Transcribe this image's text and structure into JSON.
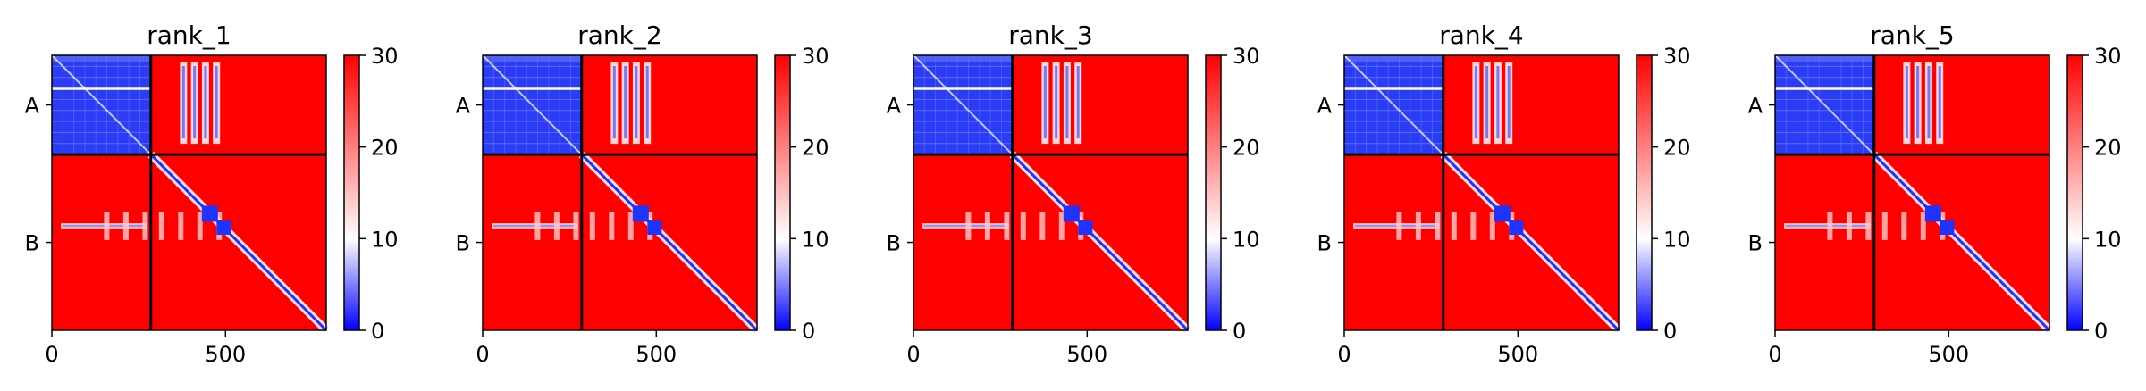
{
  "chart_data": [
    {
      "type": "heatmap",
      "title": "rank_1",
      "chains": [
        "A",
        "B"
      ],
      "chain_boundary": 285,
      "length": 790,
      "xticks": [
        0,
        500
      ],
      "colorbar": {
        "min": 0,
        "max": 30,
        "ticks": [
          0,
          10,
          20,
          30
        ],
        "colors": [
          "#0000ff",
          "#ffffff",
          "#ff0000"
        ]
      }
    },
    {
      "type": "heatmap",
      "title": "rank_2",
      "chains": [
        "A",
        "B"
      ],
      "chain_boundary": 285,
      "length": 790,
      "xticks": [
        0,
        500
      ],
      "colorbar": {
        "min": 0,
        "max": 30,
        "ticks": [
          0,
          10,
          20,
          30
        ],
        "colors": [
          "#0000ff",
          "#ffffff",
          "#ff0000"
        ]
      }
    },
    {
      "type": "heatmap",
      "title": "rank_3",
      "chains": [
        "A",
        "B"
      ],
      "chain_boundary": 285,
      "length": 790,
      "xticks": [
        0,
        500
      ],
      "colorbar": {
        "min": 0,
        "max": 30,
        "ticks": [
          0,
          10,
          20,
          30
        ],
        "colors": [
          "#0000ff",
          "#ffffff",
          "#ff0000"
        ]
      }
    },
    {
      "type": "heatmap",
      "title": "rank_4",
      "chains": [
        "A",
        "B"
      ],
      "chain_boundary": 285,
      "length": 790,
      "xticks": [
        0,
        500
      ],
      "colorbar": {
        "min": 0,
        "max": 30,
        "ticks": [
          0,
          10,
          20,
          30
        ],
        "colors": [
          "#0000ff",
          "#ffffff",
          "#ff0000"
        ]
      }
    },
    {
      "type": "heatmap",
      "title": "rank_5",
      "chains": [
        "A",
        "B"
      ],
      "chain_boundary": 285,
      "length": 790,
      "xticks": [
        0,
        500
      ],
      "colorbar": {
        "min": 0,
        "max": 30,
        "ticks": [
          0,
          10,
          20,
          30
        ],
        "colors": [
          "#0000ff",
          "#ffffff",
          "#ff0000"
        ]
      }
    }
  ]
}
